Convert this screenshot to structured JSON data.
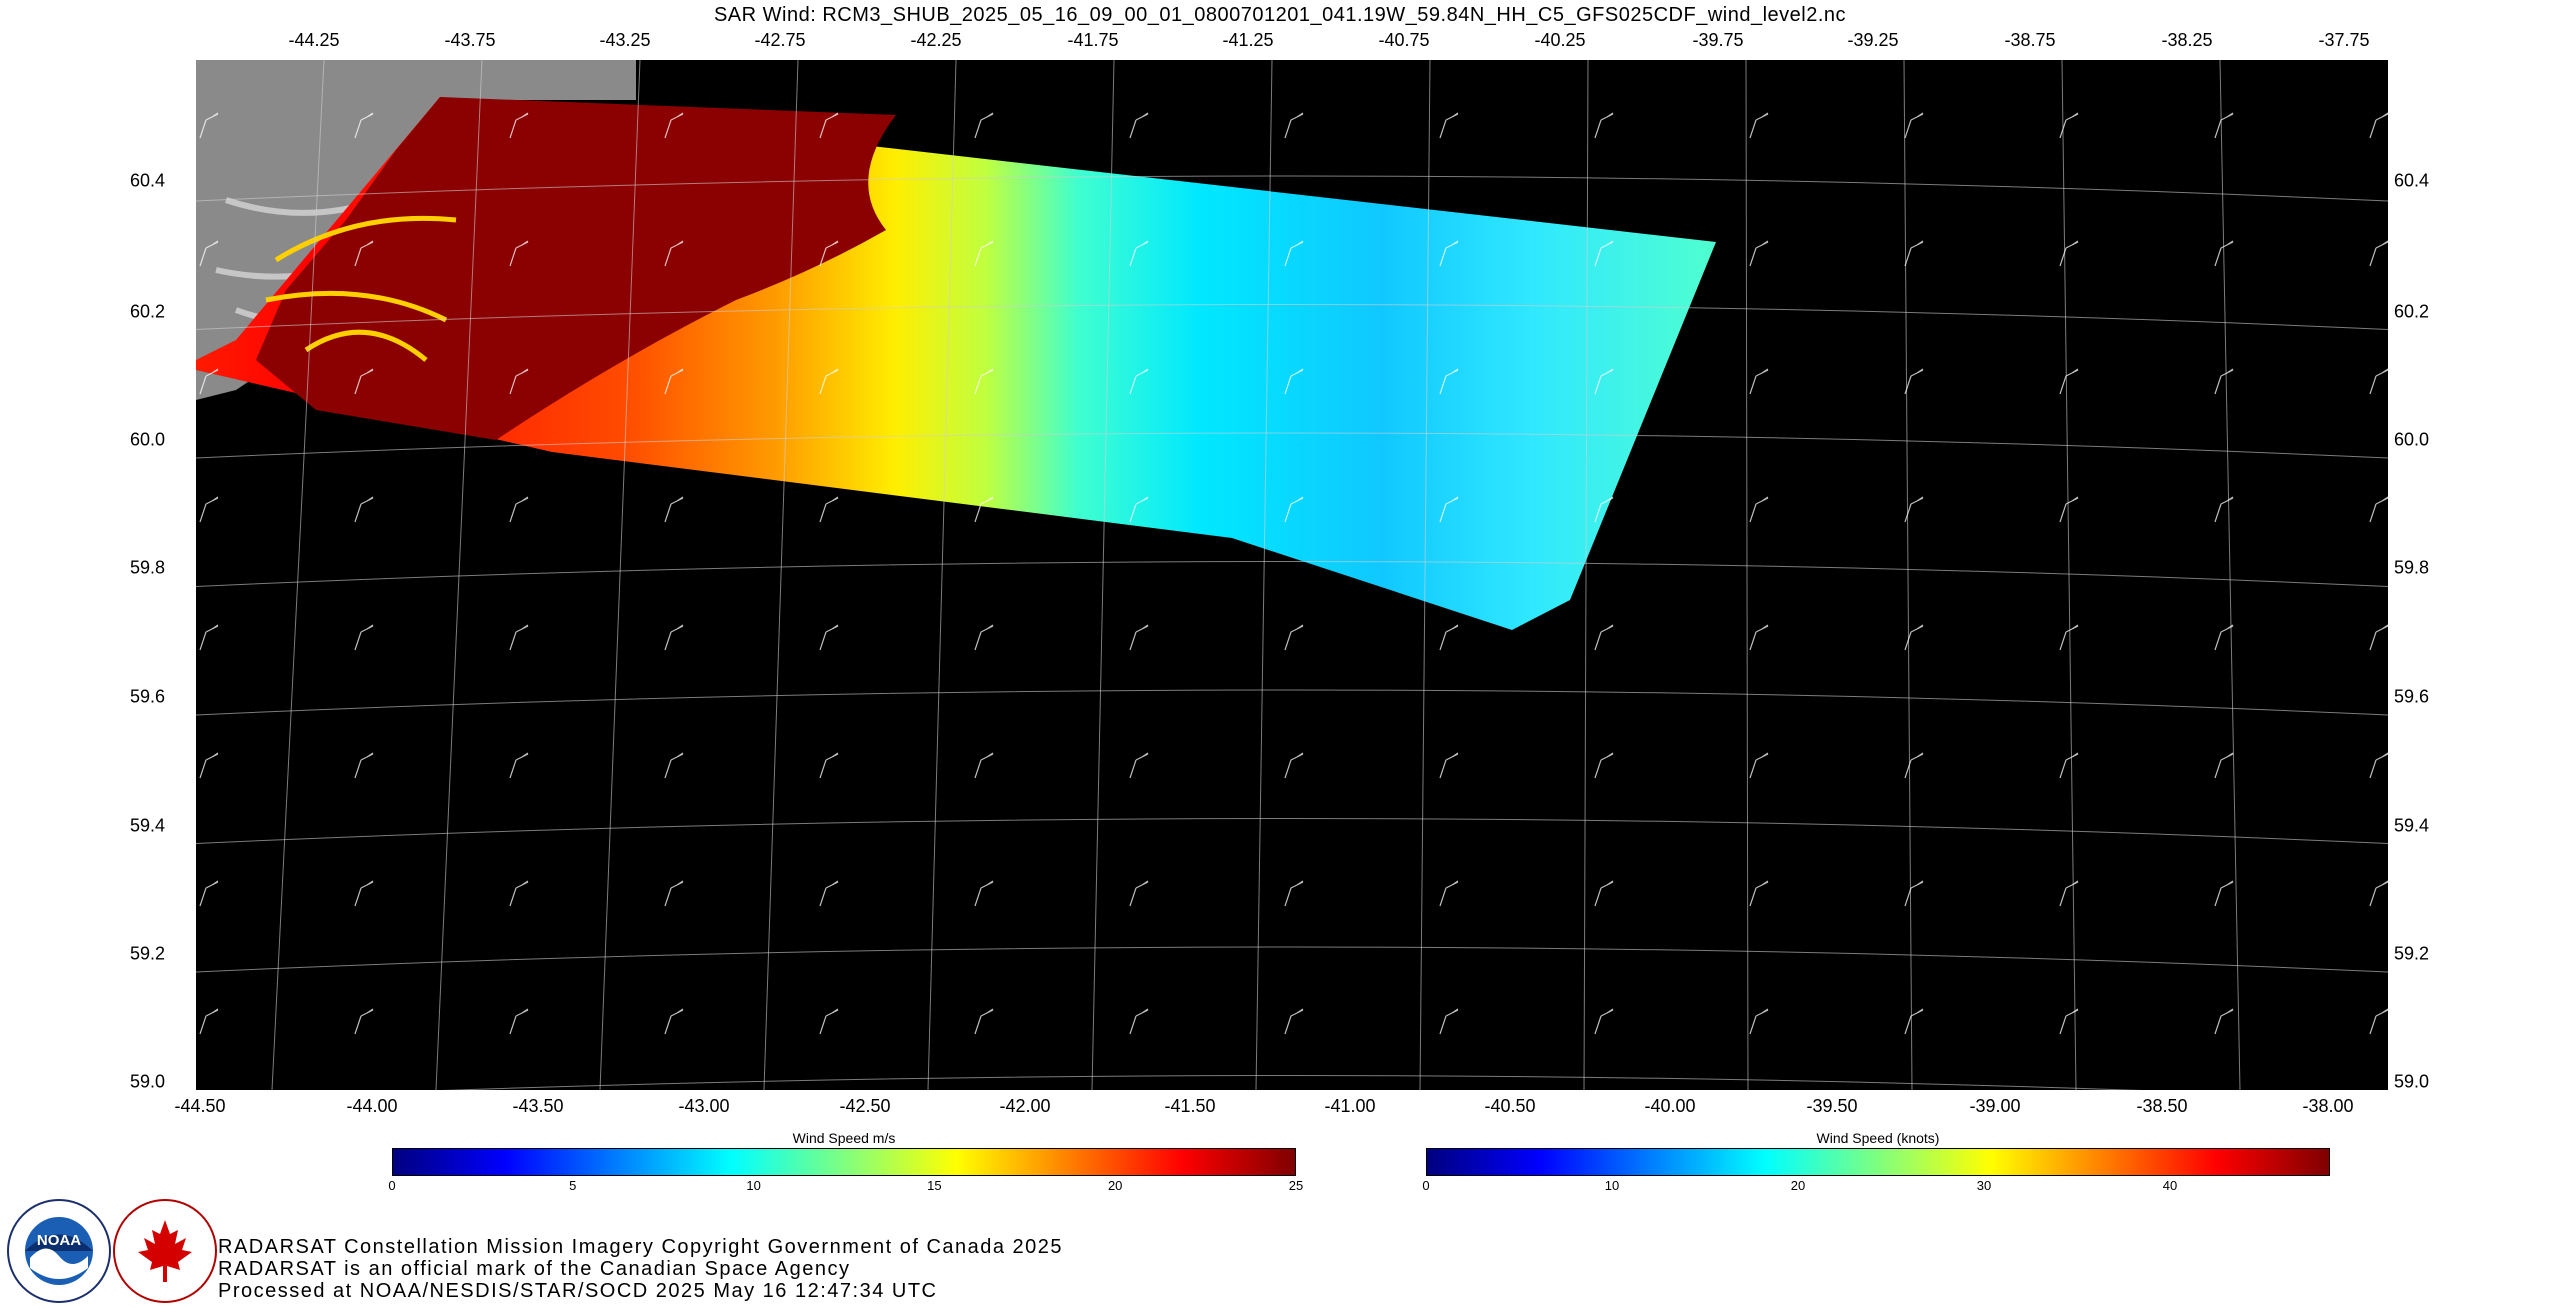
{
  "title": "SAR Wind:  RCM3_SHUB_2025_05_16_09_00_01_0800701201_041.19W_59.84N_HH_C5_GFS025CDF_wind_level2.nc",
  "map": {
    "top_lon_ticks": [
      "-44.25",
      "-43.75",
      "-43.25",
      "-42.75",
      "-42.25",
      "-41.75",
      "-41.25",
      "-40.75",
      "-40.25",
      "-39.75",
      "-39.25",
      "-38.75",
      "-38.25",
      "-37.75"
    ],
    "bottom_lon_ticks": [
      "-44.50",
      "-44.00",
      "-43.50",
      "-43.00",
      "-42.50",
      "-42.00",
      "-41.50",
      "-41.00",
      "-40.50",
      "-40.00",
      "-39.50",
      "-39.00",
      "-38.50",
      "-38.00"
    ],
    "lat_ticks": [
      "60.4",
      "60.2",
      "60.0",
      "59.8",
      "59.6",
      "59.4",
      "59.2",
      "59.0"
    ],
    "colors": {
      "background": "#000000",
      "land": "#8a8a8a",
      "grid": "#cfcfcf"
    }
  },
  "colorbars": [
    {
      "title": "Wind Speed m/s",
      "ticks": [
        "0",
        "5",
        "10",
        "15",
        "20",
        "25"
      ],
      "max": 25
    },
    {
      "title": "Wind Speed (knots)",
      "ticks": [
        "0",
        "10",
        "20",
        "30",
        "40"
      ],
      "max": 48.6
    }
  ],
  "credits": [
    "RADARSAT Constellation Mission Imagery Copyright Government of Canada 2025",
    "RADARSAT is an official mark of the Canadian Space Agency",
    "Processed at NOAA/NESDIS/STAR/SOCD 2025 May 16 12:47:34 UTC"
  ],
  "logos": {
    "noaa_text": "NOAA",
    "noaa_ring": "NATIONAL OCEANIC AND ATMOSPHERIC ADMINISTRATION · U.S. DEPARTMENT OF COMMERCE",
    "csa_ring": "CANADIAN SPACE AGENCY · AGENCE SPATIALE CANADIENNE"
  }
}
